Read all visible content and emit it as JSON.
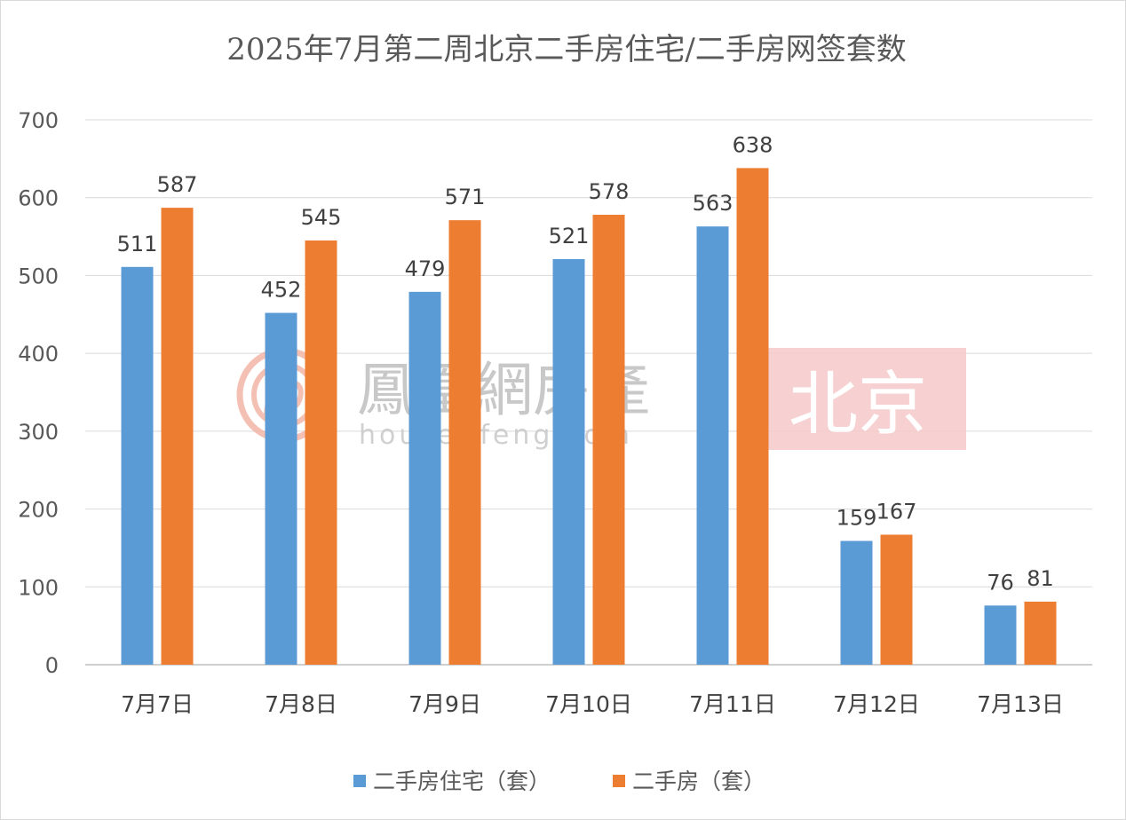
{
  "chart_data": {
    "type": "bar",
    "title": "2025年7月第二周北京二手房住宅/二手房网签套数",
    "categories": [
      "7月7日",
      "7月8日",
      "7月9日",
      "7月10日",
      "7月11日",
      "7月12日",
      "7月13日"
    ],
    "series": [
      {
        "name": "二手房住宅（套）",
        "color": "#5b9bd5",
        "values": [
          511,
          452,
          479,
          521,
          563,
          159,
          76
        ]
      },
      {
        "name": "二手房（套）",
        "color": "#ed7d31",
        "values": [
          587,
          545,
          571,
          578,
          638,
          167,
          81
        ]
      }
    ],
    "ylim": [
      0,
      700
    ],
    "yticks": [
      0,
      100,
      200,
      300,
      400,
      500,
      600,
      700
    ],
    "grid": true,
    "legend_position": "bottom"
  },
  "watermark": {
    "brand": "鳳凰網房產",
    "url": "house.ifeng.com",
    "city": "北京",
    "city_bg_color": "#f6c9c9",
    "logo_color": "#f4b6a8"
  }
}
